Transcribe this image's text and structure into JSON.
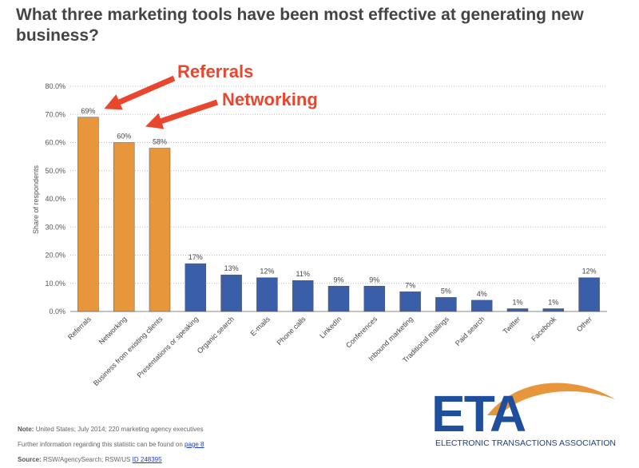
{
  "chart_data": {
    "type": "bar",
    "title": "What three marketing tools have been most effective at generating new business?",
    "ylabel": "Share of respondents",
    "categories": [
      "Referrals",
      "Networking",
      "Business from existing clients",
      "Presentations or speaking",
      "Organic search",
      "E-mails",
      "Phone calls",
      "LinkedIn",
      "Conferences",
      "Inbound marketing",
      "Traditional mailings",
      "Paid search",
      "Twitter",
      "Facebook",
      "Other"
    ],
    "values": [
      69,
      60,
      58,
      17,
      13,
      12,
      11,
      9,
      9,
      7,
      5,
      4,
      1,
      1,
      12
    ],
    "value_labels": [
      "69%",
      "60%",
      "58%",
      "17%",
      "13%",
      "12%",
      "11%",
      "9%",
      "9%",
      "7%",
      "5%",
      "4%",
      "1%",
      "1%",
      "12%"
    ],
    "colors": [
      "#e8963c",
      "#e8963c",
      "#e8963c",
      "#3a5fa8",
      "#3a5fa8",
      "#3a5fa8",
      "#3a5fa8",
      "#3a5fa8",
      "#3a5fa8",
      "#3a5fa8",
      "#3a5fa8",
      "#3a5fa8",
      "#3a5fa8",
      "#3a5fa8",
      "#3a5fa8"
    ],
    "ylim": [
      0,
      80
    ],
    "yticks": [
      {
        "value": 0,
        "label": "0.0%"
      },
      {
        "value": 10,
        "label": "10.0%"
      },
      {
        "value": 20,
        "label": "20.0%"
      },
      {
        "value": 30,
        "label": "30.0%"
      },
      {
        "value": 40,
        "label": "40.0%"
      },
      {
        "value": 50,
        "label": "50.0%"
      },
      {
        "value": 60,
        "label": "60.0%"
      },
      {
        "value": 70,
        "label": "70.0%"
      },
      {
        "value": 80,
        "label": "80.0%"
      }
    ],
    "grid": true,
    "annotations": [
      "Referrals",
      "Networking"
    ],
    "note": {
      "label": "Note:",
      "text": "United States; July 2014; 220 marketing agency executives"
    },
    "further": {
      "text": "Further information regarding this statistic can be found on",
      "link": "page 8"
    },
    "source": {
      "label": "Source:",
      "text": "RSW/AgencySearch; RSW/US",
      "link": "ID 248395"
    },
    "logo": {
      "mark": "ETA",
      "name": "ELECTRONIC TRANSACTIONS ASSOCIATION"
    }
  }
}
